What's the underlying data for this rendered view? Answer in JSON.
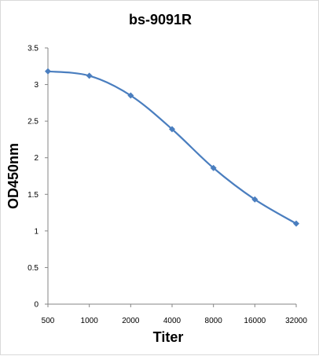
{
  "chart_data": {
    "type": "line",
    "title": "bs-9091R",
    "xlabel": "Titer",
    "ylabel": "OD450nm",
    "categories": [
      "500",
      "1000",
      "2000",
      "4000",
      "8000",
      "16000",
      "32000"
    ],
    "series": [
      {
        "values": [
          3.18,
          3.12,
          2.85,
          2.39,
          1.86,
          1.43,
          1.1
        ]
      }
    ],
    "ylim": [
      0,
      3.5
    ],
    "yticks": [
      "0",
      "0.5",
      "1",
      "1.5",
      "2",
      "2.5",
      "3",
      "3.5"
    ],
    "grid": false,
    "legend": "none",
    "line_color": "#4a7ebf",
    "marker": "diamond"
  }
}
